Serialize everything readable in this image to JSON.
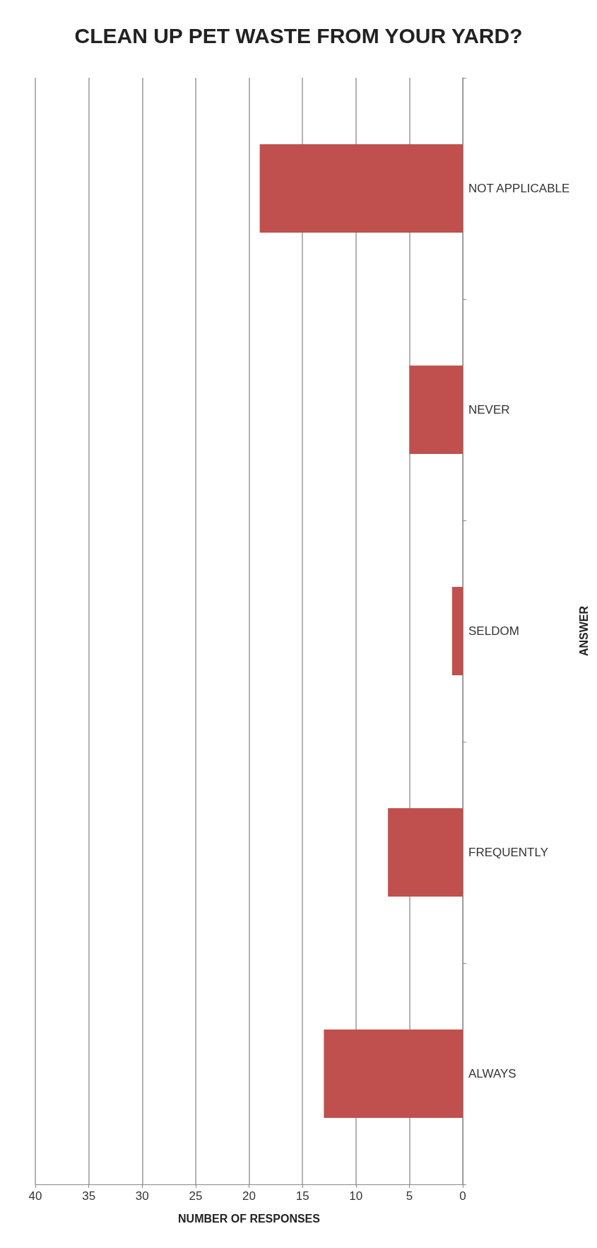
{
  "chart_data": {
    "type": "bar",
    "orientation": "horizontal",
    "title": "CLEAN UP PET WASTE FROM YOUR YARD?",
    "categories": [
      "NOT APPLICABLE",
      "NEVER",
      "SELDOM",
      "FREQUENTLY",
      "ALWAYS"
    ],
    "values": [
      19,
      5,
      1,
      7,
      13
    ],
    "color": "#c0504d",
    "xlim": [
      40,
      0
    ],
    "xticks": [
      40,
      35,
      30,
      25,
      20,
      15,
      10,
      5,
      0
    ],
    "xlabel": "NUMBER OF RESPONSES",
    "ylabel": "ANSWER",
    "grid": "x"
  }
}
